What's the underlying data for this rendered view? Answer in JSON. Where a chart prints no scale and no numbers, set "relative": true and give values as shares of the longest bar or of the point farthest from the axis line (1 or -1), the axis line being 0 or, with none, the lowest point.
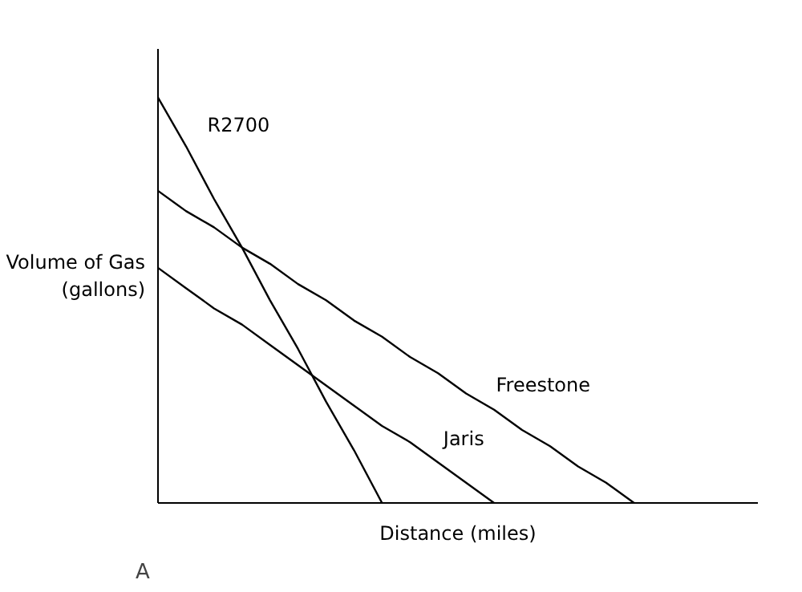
{
  "chart_data": {
    "type": "line",
    "relative": true,
    "xlabel": "Distance (miles)",
    "ylabel": "Volume of Gas\n(gallons)",
    "marker": "none",
    "line_style": "solid",
    "categories": [
      null,
      null,
      null,
      null,
      null,
      null,
      null,
      null,
      null,
      null,
      null,
      null,
      null,
      null,
      null,
      null,
      null,
      null
    ],
    "series": [
      {
        "name": "R2700",
        "color": "#000000",
        "values": [
          1,
          0.88,
          0.75,
          0.63,
          0.5,
          0.38,
          0.25,
          0.13,
          0,
          null,
          null,
          null,
          null,
          null,
          null,
          null,
          null,
          null
        ]
      },
      {
        "name": "Freestone",
        "color": "#000000",
        "values": [
          0.77,
          0.72,
          0.68,
          0.63,
          0.59,
          0.54,
          0.5,
          0.45,
          0.41,
          0.36,
          0.32,
          0.27,
          0.23,
          0.18,
          0.14,
          0.09,
          0.05,
          0
        ]
      },
      {
        "name": "Jaris",
        "color": "#000000",
        "values": [
          0.58,
          0.53,
          0.48,
          0.44,
          0.39,
          0.34,
          0.29,
          0.24,
          0.19,
          0.15,
          0.1,
          0.05,
          0,
          null,
          null,
          null,
          null,
          null
        ]
      }
    ],
    "annotations": [
      "A"
    ]
  }
}
